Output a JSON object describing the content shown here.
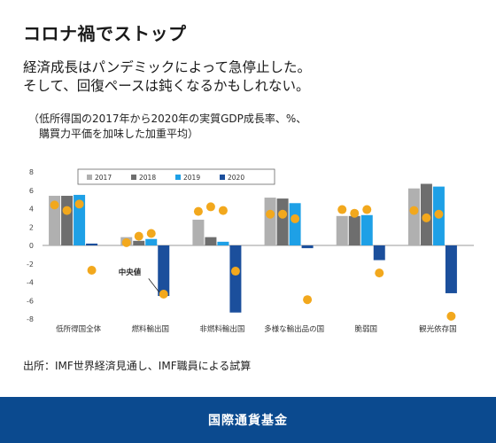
{
  "header": {
    "title": "コロナ禍でストップ",
    "subtitle_line1": "経済成長はパンデミックによって急停止した。",
    "subtitle_line2": "そして、回復ペースは鈍くなるかもしれない。",
    "note_line1": "（低所得国の2017年から2020年の実質GDP成長率、%、",
    "note_line2": "　購買力平価を加味した加重平均）"
  },
  "chart_data": {
    "type": "bar",
    "categories": [
      "低所得国全体",
      "燃料輸出国",
      "非燃料輸出国",
      "多様な輸出品の国",
      "脆弱国",
      "観光依存国"
    ],
    "series": [
      {
        "name": "2017",
        "color": "#b0b0b0",
        "values": [
          5.4,
          0.9,
          2.8,
          5.2,
          3.2,
          6.2
        ]
      },
      {
        "name": "2018",
        "color": "#6e6e6e",
        "values": [
          5.4,
          0.5,
          0.9,
          5.1,
          3.2,
          6.7
        ]
      },
      {
        "name": "2019",
        "color": "#1ea0e6",
        "values": [
          5.5,
          0.7,
          0.4,
          4.6,
          3.3,
          6.4
        ]
      },
      {
        "name": "2020",
        "color": "#1b4f9c",
        "values": [
          0.2,
          -5.5,
          -7.3,
          -0.3,
          -1.6,
          -5.2
        ]
      }
    ],
    "median": {
      "name": "中央値",
      "color": "#f2a81d",
      "values": [
        [
          4.4,
          3.8,
          4.5,
          -2.7
        ],
        [
          0.3,
          1.0,
          1.3,
          -5.3
        ],
        [
          3.7,
          4.2,
          3.8,
          -2.8
        ],
        [
          3.4,
          3.4,
          2.9,
          -5.9
        ],
        [
          3.9,
          3.5,
          3.9,
          -3.0
        ],
        [
          3.8,
          3.0,
          3.4,
          -7.7
        ]
      ]
    },
    "annotation": "中央値",
    "yticks": [
      8,
      6,
      4,
      2,
      0,
      -2,
      -4,
      -6,
      -8
    ],
    "ylim": [
      -8,
      8
    ],
    "legend_placement": "top-left"
  },
  "source": "出所：IMF世界経済見通し、IMF職員による試算",
  "footer": {
    "org": "国際通貨基金"
  }
}
